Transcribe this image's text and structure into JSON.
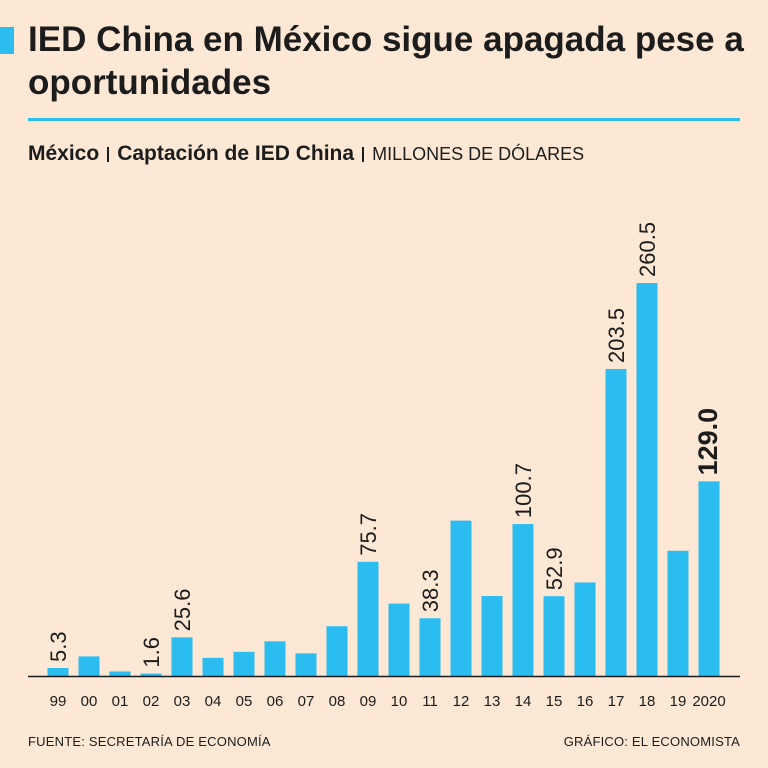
{
  "header": {
    "title": "IED China en México sigue apagada pese a oportunidades",
    "subtitle_country": "México",
    "subtitle_measure": "Captación de IED China",
    "subtitle_unit": "MILLONES DE DÓLARES"
  },
  "footer": {
    "source": "FUENTE: SECRETARÍA DE ECONOMÍA",
    "credit": "GRÁFICO: EL ECONOMISTA"
  },
  "colors": {
    "bar": "#2bbdf0",
    "accent": "#2bbdf0",
    "background": "#fde7d5",
    "text": "#1c1c1c"
  },
  "chart_data": {
    "type": "bar",
    "title": "Captación de IED China",
    "ylabel": "Millones de dólares",
    "categories": [
      "99",
      "00",
      "01",
      "02",
      "03",
      "04",
      "05",
      "06",
      "07",
      "08",
      "09",
      "10",
      "11",
      "12",
      "13",
      "14",
      "15",
      "16",
      "17",
      "18",
      "19",
      "2020"
    ],
    "values": [
      5.3,
      13,
      3,
      1.6,
      25.6,
      12,
      16,
      23,
      15,
      33,
      75.7,
      48,
      38.3,
      103,
      53,
      100.7,
      52.9,
      62,
      203.5,
      260.5,
      83,
      129.0
    ],
    "labels": [
      "5.3",
      null,
      null,
      "1.6",
      "25.6",
      null,
      null,
      null,
      null,
      null,
      "75.7",
      null,
      "38.3",
      null,
      null,
      "100.7",
      "52.9",
      null,
      "203.5",
      "260.5",
      null,
      "129.0"
    ],
    "highlight_index": 21,
    "ylim": [
      0,
      260.5
    ],
    "grid": false
  }
}
